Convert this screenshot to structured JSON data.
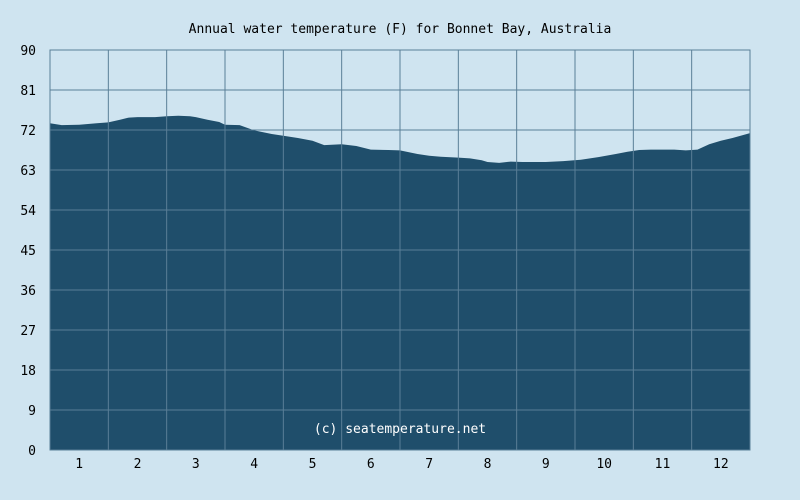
{
  "chart_data": {
    "type": "area",
    "title": "Annual water temperature (F) for Bonnet Bay, Australia",
    "watermark": "(c) seatemperature.net",
    "x_ticks": [
      "1",
      "2",
      "3",
      "4",
      "5",
      "6",
      "7",
      "8",
      "9",
      "10",
      "11",
      "12"
    ],
    "y_ticks": [
      "0",
      "9",
      "18",
      "27",
      "36",
      "45",
      "54",
      "63",
      "72",
      "81",
      "90"
    ],
    "xlim": [
      0.5,
      12.5
    ],
    "ylim": [
      0,
      90
    ],
    "grid": true,
    "x": [
      0.5,
      0.7,
      1.0,
      1.3,
      1.5,
      1.7,
      1.85,
      2.0,
      2.3,
      2.5,
      2.7,
      2.9,
      3.0,
      3.2,
      3.4,
      3.5,
      3.75,
      4.0,
      4.3,
      4.5,
      4.75,
      5.0,
      5.2,
      5.5,
      5.75,
      6.0,
      6.3,
      6.5,
      6.8,
      7.0,
      7.2,
      7.5,
      7.7,
      7.9,
      8.0,
      8.2,
      8.4,
      8.6,
      9.0,
      9.3,
      9.6,
      9.9,
      10.2,
      10.4,
      10.6,
      10.8,
      11.0,
      11.2,
      11.4,
      11.6,
      11.8,
      12.0,
      12.2,
      12.5
    ],
    "values": [
      73.5,
      73.1,
      73.2,
      73.5,
      73.7,
      74.3,
      74.8,
      74.9,
      74.9,
      75.1,
      75.2,
      75.1,
      74.9,
      74.3,
      73.8,
      73.2,
      73.1,
      71.9,
      71.1,
      70.7,
      70.2,
      69.6,
      68.6,
      68.8,
      68.4,
      67.6,
      67.5,
      67.4,
      66.6,
      66.2,
      66.0,
      65.8,
      65.6,
      65.2,
      64.8,
      64.6,
      64.9,
      64.8,
      64.8,
      65.0,
      65.3,
      65.9,
      66.6,
      67.1,
      67.5,
      67.6,
      67.6,
      67.6,
      67.4,
      67.6,
      68.8,
      69.6,
      70.2,
      71.3
    ],
    "colors": {
      "background": "#cfe4f0",
      "fill": "#1f4e6b",
      "grid": "#5a7f97",
      "axis": "#000000"
    }
  }
}
